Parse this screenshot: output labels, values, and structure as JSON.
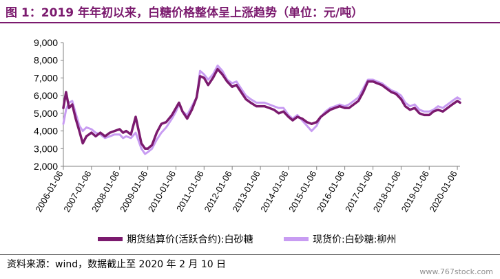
{
  "title": "图 1：2019 年年初以来，白糖价格整体呈上涨趋势（单位：元/吨）",
  "source": "资料来源：wind，数据截止至 2020 年 2 月 10 日",
  "watermark": "www.767stock.com",
  "colors": {
    "title": "#7b1a6e",
    "futures": "#7b1a6e",
    "spot": "#c89cf2"
  },
  "chart_data": {
    "type": "line",
    "y_ticks": [
      "9,000",
      "8,000",
      "7,000",
      "6,000",
      "5,000",
      "4,000",
      "3,000",
      "2,000"
    ],
    "ylim": [
      2000,
      9000
    ],
    "x_ticks": [
      "2006-01-06",
      "2007-01-06",
      "2008-01-06",
      "2009-01-06",
      "2010-01-06",
      "2011-01-06",
      "2012-01-06",
      "2013-01-06",
      "2014-01-06",
      "2015-01-06",
      "2016-01-06",
      "2017-01-06",
      "2018-01-06",
      "2019-01-06",
      "2020-01-06"
    ],
    "xlim": [
      "2006-01-06",
      "2020-02-10"
    ],
    "grid": false,
    "legend_position": "bottom",
    "series": [
      {
        "name": "期货结算价(活跃合约):白砂糖",
        "points": [
          [
            "2006-01-06",
            5300
          ],
          [
            "2006-02-10",
            6200
          ],
          [
            "2006-03-20",
            5300
          ],
          [
            "2006-05-01",
            5500
          ],
          [
            "2006-06-15",
            4700
          ],
          [
            "2006-08-01",
            4000
          ],
          [
            "2006-09-15",
            3300
          ],
          [
            "2006-11-01",
            3700
          ],
          [
            "2007-01-06",
            3900
          ],
          [
            "2007-03-01",
            3700
          ],
          [
            "2007-05-01",
            3900
          ],
          [
            "2007-07-01",
            3700
          ],
          [
            "2007-09-01",
            3900
          ],
          [
            "2007-11-01",
            4000
          ],
          [
            "2008-01-06",
            4100
          ],
          [
            "2008-02-20",
            3900
          ],
          [
            "2008-04-01",
            4000
          ],
          [
            "2008-06-01",
            3800
          ],
          [
            "2008-08-01",
            4800
          ],
          [
            "2008-10-15",
            3300
          ],
          [
            "2008-12-01",
            3000
          ],
          [
            "2009-01-06",
            3000
          ],
          [
            "2009-03-01",
            3200
          ],
          [
            "2009-05-01",
            3900
          ],
          [
            "2009-07-01",
            4400
          ],
          [
            "2009-09-01",
            4500
          ],
          [
            "2009-11-15",
            4900
          ],
          [
            "2010-01-06",
            5300
          ],
          [
            "2010-02-15",
            5600
          ],
          [
            "2010-04-01",
            5100
          ],
          [
            "2010-06-01",
            4700
          ],
          [
            "2010-08-01",
            5200
          ],
          [
            "2010-10-01",
            5900
          ],
          [
            "2010-11-15",
            7100
          ],
          [
            "2011-01-06",
            7000
          ],
          [
            "2011-03-01",
            6600
          ],
          [
            "2011-05-01",
            7000
          ],
          [
            "2011-07-01",
            7500
          ],
          [
            "2011-09-01",
            7200
          ],
          [
            "2011-11-01",
            6800
          ],
          [
            "2012-01-06",
            6500
          ],
          [
            "2012-03-01",
            6600
          ],
          [
            "2012-05-01",
            6200
          ],
          [
            "2012-07-01",
            5800
          ],
          [
            "2012-09-01",
            5600
          ],
          [
            "2012-11-15",
            5400
          ],
          [
            "2013-01-06",
            5400
          ],
          [
            "2013-03-01",
            5400
          ],
          [
            "2013-05-01",
            5300
          ],
          [
            "2013-07-01",
            5200
          ],
          [
            "2013-09-01",
            5000
          ],
          [
            "2013-11-01",
            5100
          ],
          [
            "2014-01-06",
            4800
          ],
          [
            "2014-03-01",
            4600
          ],
          [
            "2014-05-01",
            4800
          ],
          [
            "2014-07-01",
            4700
          ],
          [
            "2014-09-01",
            4500
          ],
          [
            "2014-11-01",
            4400
          ],
          [
            "2015-01-06",
            4500
          ],
          [
            "2015-03-01",
            4800
          ],
          [
            "2015-05-01",
            5000
          ],
          [
            "2015-07-01",
            5200
          ],
          [
            "2015-09-01",
            5300
          ],
          [
            "2015-11-01",
            5400
          ],
          [
            "2016-01-06",
            5300
          ],
          [
            "2016-03-01",
            5300
          ],
          [
            "2016-05-01",
            5500
          ],
          [
            "2016-07-01",
            5700
          ],
          [
            "2016-09-01",
            6200
          ],
          [
            "2016-11-01",
            6800
          ],
          [
            "2017-01-06",
            6800
          ],
          [
            "2017-03-01",
            6700
          ],
          [
            "2017-05-01",
            6600
          ],
          [
            "2017-07-01",
            6400
          ],
          [
            "2017-09-01",
            6200
          ],
          [
            "2017-11-01",
            6100
          ],
          [
            "2018-01-06",
            5800
          ],
          [
            "2018-03-01",
            5400
          ],
          [
            "2018-05-01",
            5200
          ],
          [
            "2018-07-01",
            5300
          ],
          [
            "2018-09-01",
            5000
          ],
          [
            "2018-11-01",
            4900
          ],
          [
            "2019-01-06",
            4900
          ],
          [
            "2019-03-01",
            5100
          ],
          [
            "2019-05-01",
            5200
          ],
          [
            "2019-07-01",
            5100
          ],
          [
            "2019-09-01",
            5300
          ],
          [
            "2019-11-01",
            5500
          ],
          [
            "2020-01-06",
            5700
          ],
          [
            "2020-02-10",
            5600
          ]
        ]
      },
      {
        "name": "现货价:白砂糖:柳州",
        "points": [
          [
            "2006-01-06",
            4400
          ],
          [
            "2006-02-10",
            5200
          ],
          [
            "2006-03-20",
            5600
          ],
          [
            "2006-05-01",
            5700
          ],
          [
            "2006-06-15",
            5000
          ],
          [
            "2006-08-01",
            4300
          ],
          [
            "2006-09-15",
            4000
          ],
          [
            "2006-11-01",
            4200
          ],
          [
            "2007-01-06",
            4100
          ],
          [
            "2007-03-01",
            3900
          ],
          [
            "2007-05-01",
            3800
          ],
          [
            "2007-07-01",
            3600
          ],
          [
            "2007-09-01",
            3700
          ],
          [
            "2007-11-01",
            3800
          ],
          [
            "2008-01-06",
            3800
          ],
          [
            "2008-02-20",
            3600
          ],
          [
            "2008-04-01",
            3700
          ],
          [
            "2008-06-01",
            3600
          ],
          [
            "2008-08-01",
            3900
          ],
          [
            "2008-10-15",
            3000
          ],
          [
            "2008-12-01",
            2700
          ],
          [
            "2009-01-06",
            2800
          ],
          [
            "2009-03-01",
            3000
          ],
          [
            "2009-05-01",
            3500
          ],
          [
            "2009-07-01",
            3900
          ],
          [
            "2009-09-01",
            4200
          ],
          [
            "2009-11-15",
            4700
          ],
          [
            "2010-01-06",
            5100
          ],
          [
            "2010-02-15",
            5500
          ],
          [
            "2010-04-01",
            5100
          ],
          [
            "2010-06-01",
            4900
          ],
          [
            "2010-08-01",
            5400
          ],
          [
            "2010-10-01",
            5900
          ],
          [
            "2010-11-15",
            7400
          ],
          [
            "2011-01-06",
            7200
          ],
          [
            "2011-03-01",
            6900
          ],
          [
            "2011-05-01",
            7200
          ],
          [
            "2011-07-01",
            7700
          ],
          [
            "2011-09-01",
            7400
          ],
          [
            "2011-11-01",
            6900
          ],
          [
            "2012-01-06",
            6700
          ],
          [
            "2012-03-01",
            6800
          ],
          [
            "2012-05-01",
            6400
          ],
          [
            "2012-07-01",
            6000
          ],
          [
            "2012-09-01",
            5800
          ],
          [
            "2012-11-15",
            5600
          ],
          [
            "2013-01-06",
            5600
          ],
          [
            "2013-03-01",
            5600
          ],
          [
            "2013-05-01",
            5500
          ],
          [
            "2013-07-01",
            5400
          ],
          [
            "2013-09-01",
            5300
          ],
          [
            "2013-11-01",
            5300
          ],
          [
            "2014-01-06",
            4900
          ],
          [
            "2014-03-01",
            4700
          ],
          [
            "2014-05-01",
            4900
          ],
          [
            "2014-07-01",
            4600
          ],
          [
            "2014-09-01",
            4300
          ],
          [
            "2014-11-01",
            4000
          ],
          [
            "2015-01-06",
            4300
          ],
          [
            "2015-03-01",
            4800
          ],
          [
            "2015-05-01",
            5100
          ],
          [
            "2015-07-01",
            5300
          ],
          [
            "2015-09-01",
            5400
          ],
          [
            "2015-11-01",
            5500
          ],
          [
            "2016-01-06",
            5400
          ],
          [
            "2016-03-01",
            5500
          ],
          [
            "2016-05-01",
            5700
          ],
          [
            "2016-07-01",
            5900
          ],
          [
            "2016-09-01",
            6400
          ],
          [
            "2016-11-01",
            6900
          ],
          [
            "2017-01-06",
            6900
          ],
          [
            "2017-03-01",
            6800
          ],
          [
            "2017-05-01",
            6700
          ],
          [
            "2017-07-01",
            6500
          ],
          [
            "2017-09-01",
            6300
          ],
          [
            "2017-11-01",
            6200
          ],
          [
            "2018-01-06",
            6000
          ],
          [
            "2018-03-01",
            5600
          ],
          [
            "2018-05-01",
            5400
          ],
          [
            "2018-07-01",
            5500
          ],
          [
            "2018-09-01",
            5200
          ],
          [
            "2018-11-01",
            5100
          ],
          [
            "2019-01-06",
            5100
          ],
          [
            "2019-03-01",
            5200
          ],
          [
            "2019-05-01",
            5400
          ],
          [
            "2019-07-01",
            5300
          ],
          [
            "2019-09-01",
            5500
          ],
          [
            "2019-11-01",
            5700
          ],
          [
            "2020-01-06",
            5900
          ],
          [
            "2020-02-10",
            5800
          ]
        ]
      }
    ]
  }
}
